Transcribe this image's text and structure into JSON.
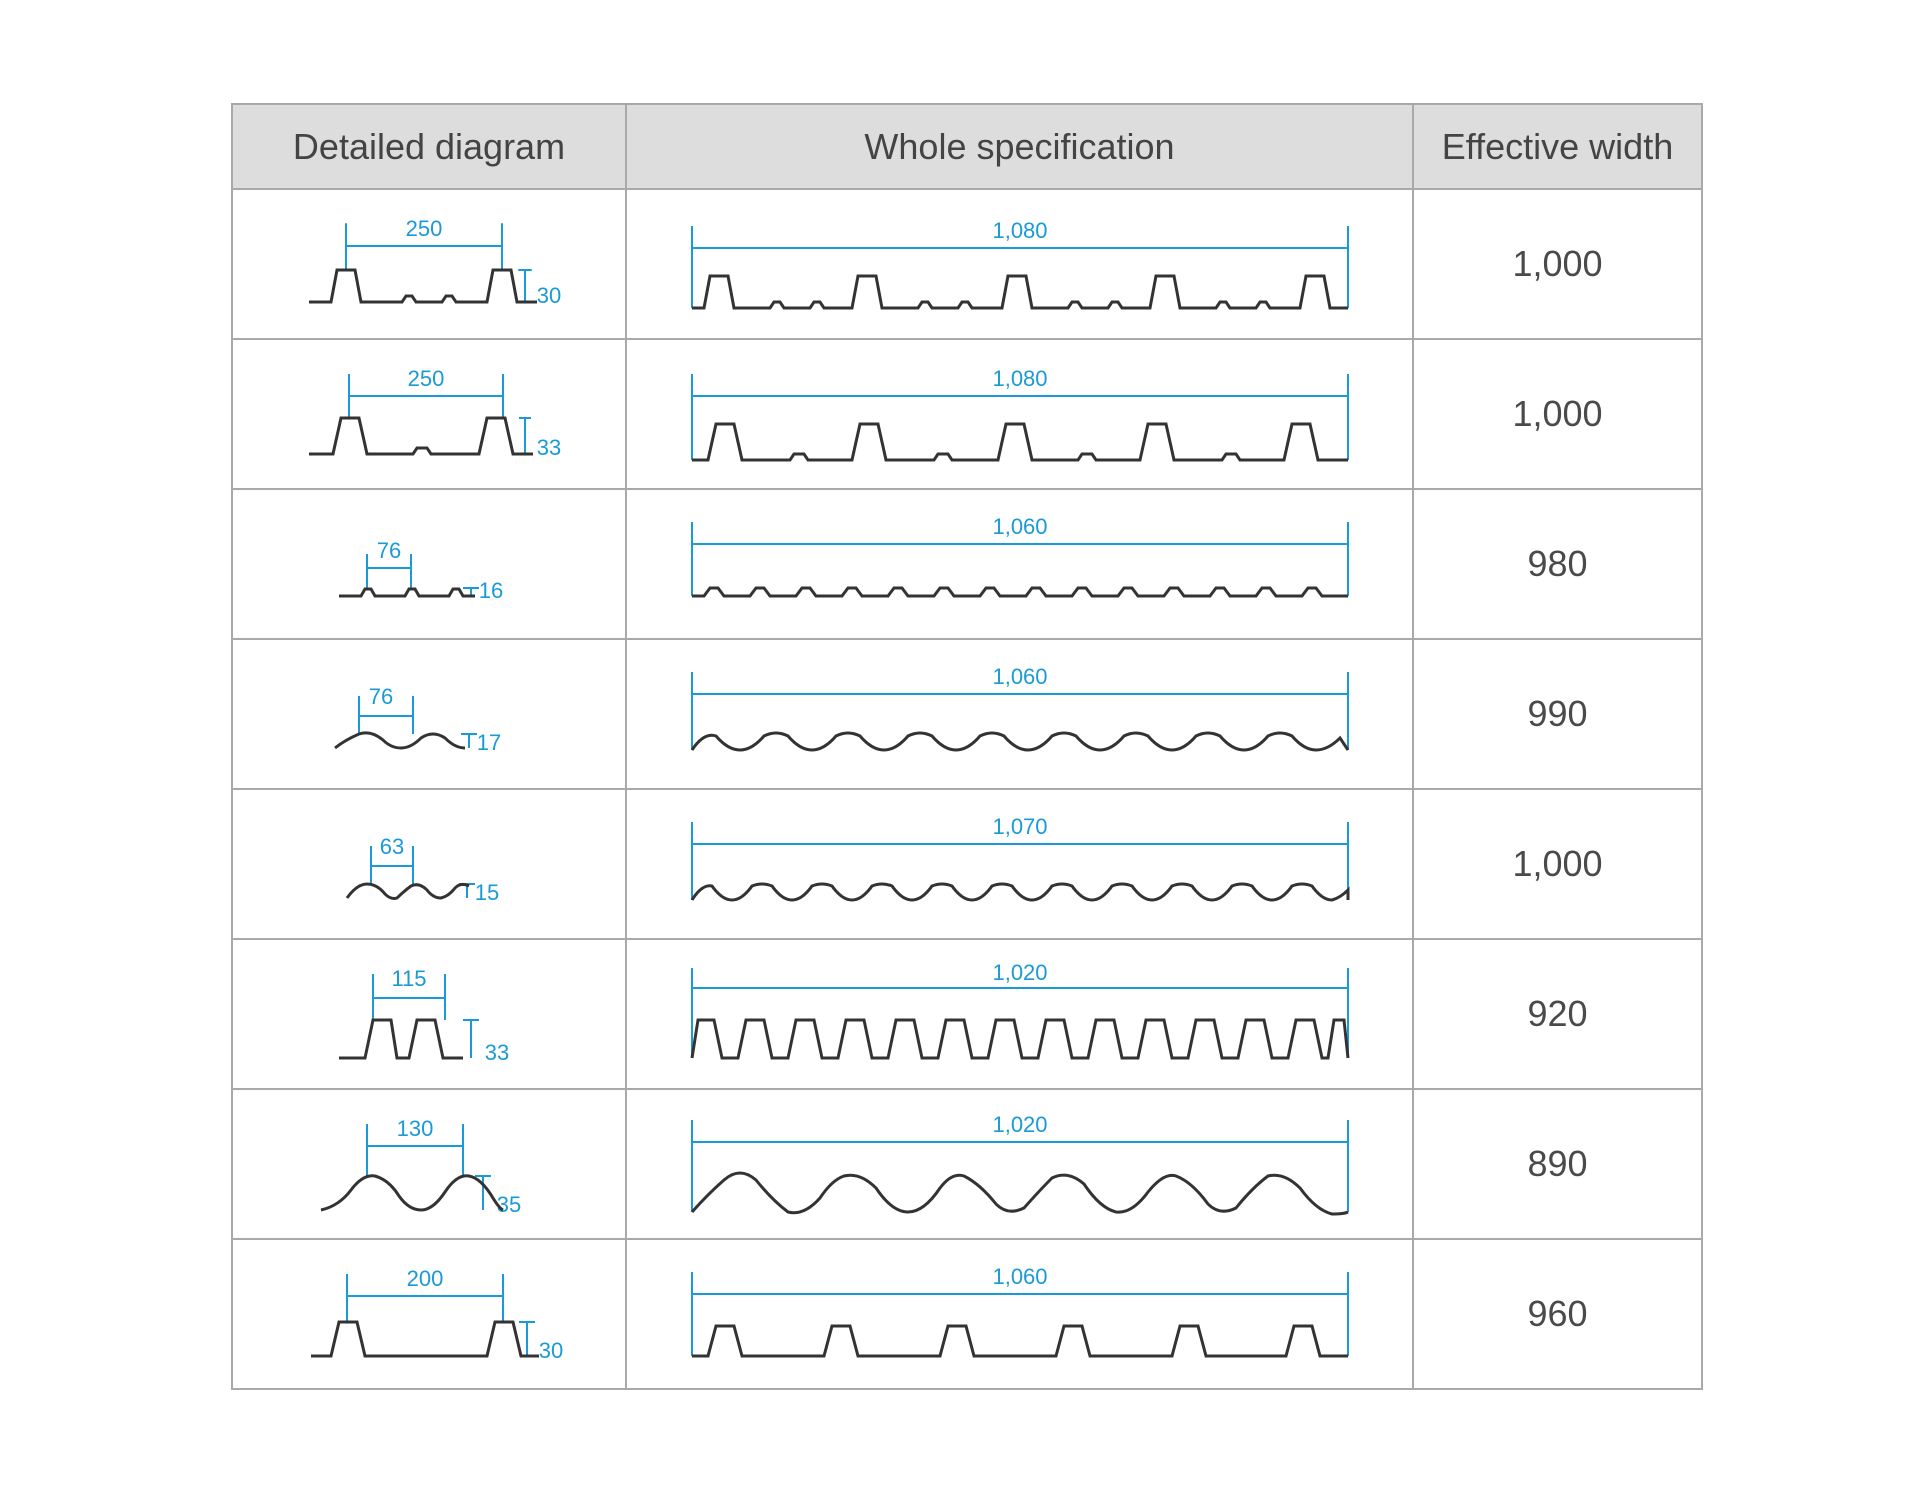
{
  "headers": {
    "diagram": "Detailed diagram",
    "spec": "Whole specification",
    "width": "Effective width"
  },
  "colors": {
    "dimension": "#1a9ad6",
    "profile": "#333333",
    "header_bg": "#dddddd",
    "border": "#a9a9a9"
  },
  "rows": [
    {
      "profile": "trapezoid-deck",
      "pitch": "250",
      "height": "30",
      "total": "1,080",
      "effective": "1,000"
    },
    {
      "profile": "trapezoid-deck-single-rib",
      "pitch": "250",
      "height": "33",
      "total": "1,080",
      "effective": "1,000"
    },
    {
      "profile": "low-trapezoid",
      "pitch": "76",
      "height": "16",
      "total": "1,060",
      "effective": "980"
    },
    {
      "profile": "corrugated",
      "pitch": "76",
      "height": "17",
      "total": "1,060",
      "effective": "990"
    },
    {
      "profile": "corrugated-fine",
      "pitch": "63",
      "height": "15",
      "total": "1,070",
      "effective": "1,000"
    },
    {
      "profile": "box-rib",
      "pitch": "115",
      "height": "33",
      "total": "1,020",
      "effective": "920"
    },
    {
      "profile": "large-wave",
      "pitch": "130",
      "height": "35",
      "total": "1,020",
      "effective": "890"
    },
    {
      "profile": "trapezoid-wide",
      "pitch": "200",
      "height": "30",
      "total": "1,060",
      "effective": "960"
    }
  ]
}
